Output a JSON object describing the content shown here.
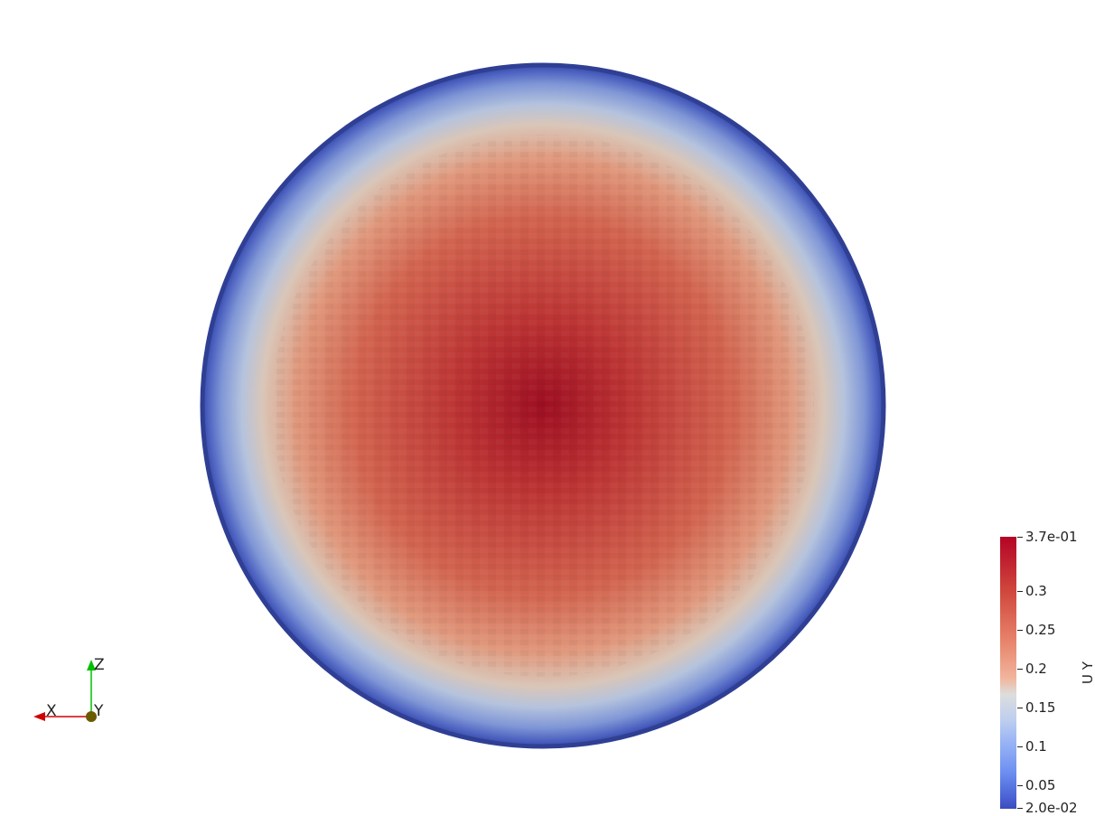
{
  "scalar_bar": {
    "title": "U Y",
    "max_label": "3.7e-01",
    "min_label": "2.0e-02",
    "ticks": [
      "0.3",
      "0.25",
      "0.2",
      "0.15",
      "0.1",
      "0.05"
    ],
    "range": [
      0.02,
      0.37
    ],
    "colors": {
      "high": "#b40426",
      "mid": "#dddddd",
      "low": "#3b4cc0"
    }
  },
  "orientation_axes": {
    "x_label": "X",
    "y_label": "Y",
    "z_label": "Z",
    "x_color": "#d00000",
    "y_color": "#8a7d00",
    "z_color": "#00c000"
  },
  "disk": {
    "field": "U Y",
    "center_value": 0.37,
    "edge_value": 0.02
  }
}
